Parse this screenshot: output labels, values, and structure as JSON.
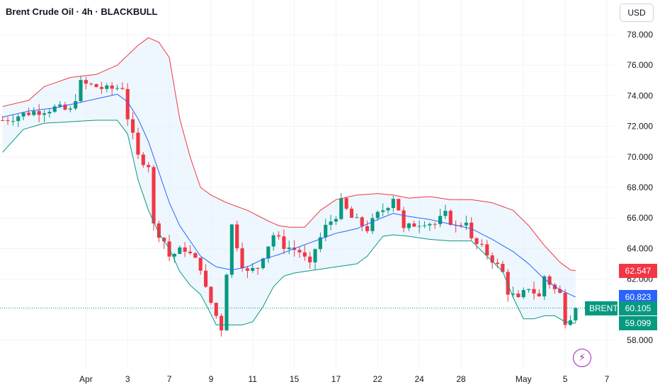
{
  "header": {
    "title": "Brent Crude Oil · 4h · BLACKBULL",
    "currency": "USD"
  },
  "tags": {
    "upper": "62.547",
    "middle": "60.823",
    "lower": "59.099",
    "last": "60.105",
    "symbol": "BRENT"
  },
  "icons": {
    "flash": "lightning-icon"
  },
  "colors": {
    "up": "#089981",
    "down": "#f23645",
    "upper_band": "#f23645",
    "middle_band": "#2962ff",
    "lower_band": "#089981",
    "band_fill": "#e3f2fd",
    "last_price": "#089981",
    "upper_tag": "#f23645",
    "middle_tag": "#2962ff",
    "lower_tag": "#089981"
  },
  "chart_data": {
    "type": "candlestick",
    "title": "Brent Crude Oil · 4h · BLACKBULL",
    "timeframe": "4h",
    "ylim": [
      56.5,
      79.5
    ],
    "y_ticks": [
      "58.000",
      "60.000",
      "62.000",
      "64.000",
      "66.000",
      "68.000",
      "70.000",
      "72.000",
      "74.000",
      "76.000",
      "78.000"
    ],
    "x_ticks": [
      {
        "label": "Apr",
        "i": 16
      },
      {
        "label": "3",
        "i": 24
      },
      {
        "label": "7",
        "i": 32
      },
      {
        "label": "9",
        "i": 40
      },
      {
        "label": "11",
        "i": 48
      },
      {
        "label": "15",
        "i": 56
      },
      {
        "label": "17",
        "i": 64
      },
      {
        "label": "22",
        "i": 72
      },
      {
        "label": "24",
        "i": 80
      },
      {
        "label": "28",
        "i": 88
      },
      {
        "label": "May",
        "i": 100
      },
      {
        "label": "5",
        "i": 108
      },
      {
        "label": "7",
        "i": 116
      }
    ],
    "close_path": [
      [
        0,
        72.4
      ],
      [
        5,
        72.9
      ],
      [
        10,
        73.2
      ],
      [
        13,
        73.0
      ],
      [
        15,
        74.8
      ],
      [
        18,
        74.6
      ],
      [
        20,
        74.4
      ],
      [
        23,
        74.6
      ],
      [
        24,
        72.6
      ],
      [
        26,
        70.0
      ],
      [
        28,
        69.5
      ],
      [
        29,
        65.5
      ],
      [
        31,
        64.5
      ],
      [
        32,
        63.5
      ],
      [
        35,
        64.0
      ],
      [
        38,
        62.8
      ],
      [
        39,
        61.3
      ],
      [
        41,
        59.6
      ],
      [
        42,
        58.8
      ],
      [
        43,
        62.5
      ],
      [
        44,
        65.5
      ],
      [
        46,
        63.0
      ],
      [
        47,
        62.4
      ],
      [
        49,
        62.8
      ],
      [
        50,
        63.6
      ],
      [
        52,
        64.9
      ],
      [
        54,
        64.2
      ],
      [
        57,
        63.8
      ],
      [
        59,
        62.8
      ],
      [
        60,
        64.0
      ],
      [
        62,
        65.4
      ],
      [
        64,
        66.2
      ],
      [
        65,
        67.0
      ],
      [
        67,
        66.0
      ],
      [
        70,
        65.3
      ],
      [
        72,
        66.2
      ],
      [
        74,
        66.9
      ],
      [
        75,
        67.4
      ],
      [
        76,
        66.6
      ],
      [
        77,
        65.2
      ],
      [
        79,
        65.6
      ],
      [
        81,
        65.8
      ],
      [
        83,
        65.6
      ],
      [
        85,
        66.2
      ],
      [
        87,
        65.4
      ],
      [
        89,
        65.9
      ],
      [
        90,
        64.5
      ],
      [
        92,
        64.0
      ],
      [
        94,
        63.3
      ],
      [
        96,
        62.4
      ],
      [
        97,
        61.2
      ],
      [
        99,
        60.6
      ],
      [
        101,
        61.5
      ],
      [
        103,
        60.8
      ],
      [
        104,
        62.2
      ],
      [
        106,
        61.3
      ],
      [
        107,
        61.0
      ],
      [
        108,
        59.3
      ],
      [
        109,
        59.6
      ],
      [
        110,
        60.1
      ]
    ],
    "series": [
      {
        "name": "BRENT",
        "last": 60.105
      },
      {
        "name": "",
        "bb": "upper",
        "last": 62.547,
        "values": [
          [
            0,
            73.3
          ],
          [
            5,
            73.7
          ],
          [
            8,
            74.6
          ],
          [
            13,
            75.2
          ],
          [
            18,
            75.4
          ],
          [
            22,
            76.0
          ],
          [
            26,
            77.3
          ],
          [
            28,
            77.8
          ],
          [
            30,
            77.5
          ],
          [
            32,
            76.5
          ],
          [
            34,
            72.5
          ],
          [
            36,
            70.0
          ],
          [
            38,
            68.0
          ],
          [
            40,
            67.5
          ],
          [
            43,
            67.0
          ],
          [
            47,
            66.5
          ],
          [
            51,
            65.8
          ],
          [
            53,
            65.5
          ],
          [
            55,
            65.4
          ],
          [
            58,
            65.4
          ],
          [
            61,
            66.5
          ],
          [
            64,
            67.2
          ],
          [
            68,
            67.5
          ],
          [
            72,
            67.6
          ],
          [
            75,
            67.5
          ],
          [
            78,
            67.3
          ],
          [
            82,
            67.4
          ],
          [
            86,
            67.2
          ],
          [
            90,
            67.2
          ],
          [
            94,
            67.0
          ],
          [
            98,
            66.5
          ],
          [
            101,
            65.5
          ],
          [
            104,
            64.2
          ],
          [
            107,
            63.1
          ],
          [
            109,
            62.6
          ],
          [
            110,
            62.55
          ]
        ]
      },
      {
        "name": "",
        "bb": "basis",
        "last": 60.823,
        "values": [
          [
            0,
            72.6
          ],
          [
            5,
            73.0
          ],
          [
            10,
            73.2
          ],
          [
            14,
            73.5
          ],
          [
            18,
            73.8
          ],
          [
            22,
            74.1
          ],
          [
            24,
            73.6
          ],
          [
            26,
            72.5
          ],
          [
            28,
            71.0
          ],
          [
            30,
            69.0
          ],
          [
            32,
            67.0
          ],
          [
            34,
            65.5
          ],
          [
            36,
            64.5
          ],
          [
            38,
            63.5
          ],
          [
            41,
            62.8
          ],
          [
            44,
            62.6
          ],
          [
            47,
            62.8
          ],
          [
            50,
            63.3
          ],
          [
            53,
            63.6
          ],
          [
            56,
            64.0
          ],
          [
            60,
            64.5
          ],
          [
            64,
            65.0
          ],
          [
            68,
            65.3
          ],
          [
            72,
            65.9
          ],
          [
            75,
            66.3
          ],
          [
            78,
            66.1
          ],
          [
            82,
            65.9
          ],
          [
            86,
            65.6
          ],
          [
            90,
            65.3
          ],
          [
            94,
            64.6
          ],
          [
            98,
            63.8
          ],
          [
            101,
            63.0
          ],
          [
            104,
            62.0
          ],
          [
            107,
            61.3
          ],
          [
            110,
            60.82
          ]
        ]
      },
      {
        "name": "",
        "bb": "lower",
        "last": 59.099,
        "values": [
          [
            0,
            70.3
          ],
          [
            4,
            71.8
          ],
          [
            8,
            72.2
          ],
          [
            13,
            72.3
          ],
          [
            18,
            72.4
          ],
          [
            22,
            72.4
          ],
          [
            24,
            71.5
          ],
          [
            26,
            68.5
          ],
          [
            28,
            66.5
          ],
          [
            30,
            65.0
          ],
          [
            32,
            64.0
          ],
          [
            34,
            62.5
          ],
          [
            36,
            61.6
          ],
          [
            38,
            61.0
          ],
          [
            40,
            59.7
          ],
          [
            41,
            59.0
          ],
          [
            43,
            59.0
          ],
          [
            46,
            59.0
          ],
          [
            48,
            59.2
          ],
          [
            50,
            60.2
          ],
          [
            52,
            61.5
          ],
          [
            54,
            62.2
          ],
          [
            56,
            62.4
          ],
          [
            60,
            62.6
          ],
          [
            64,
            62.8
          ],
          [
            68,
            63.0
          ],
          [
            70,
            63.5
          ],
          [
            73,
            64.8
          ],
          [
            75,
            64.9
          ],
          [
            78,
            64.8
          ],
          [
            82,
            64.6
          ],
          [
            86,
            64.5
          ],
          [
            90,
            64.5
          ],
          [
            93,
            63.5
          ],
          [
            96,
            62.5
          ],
          [
            98,
            60.8
          ],
          [
            100,
            59.4
          ],
          [
            102,
            59.4
          ],
          [
            104,
            59.6
          ],
          [
            106,
            59.6
          ],
          [
            108,
            59.2
          ],
          [
            110,
            59.1
          ]
        ]
      }
    ]
  }
}
